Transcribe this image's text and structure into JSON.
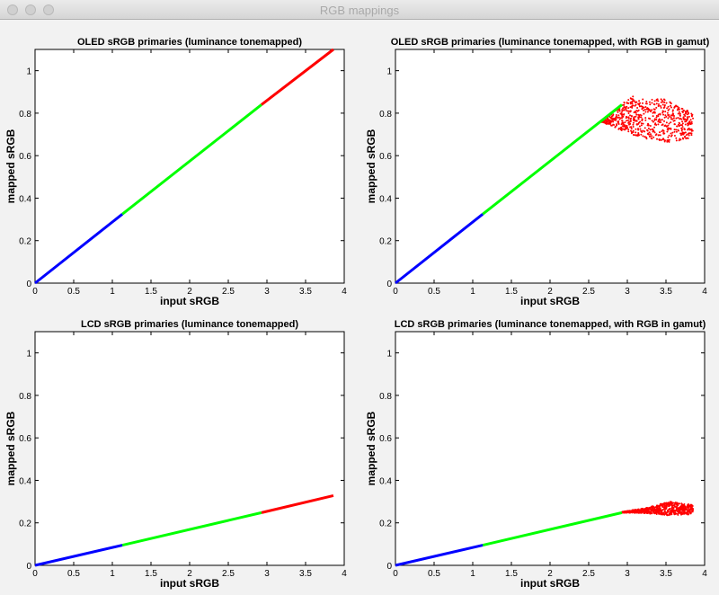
{
  "window": {
    "title": "RGB mappings"
  },
  "colors": {
    "blue": "#0000ff",
    "green": "#00ff00",
    "red": "#ff0000"
  },
  "chart_data": [
    {
      "type": "line",
      "title": "OLED sRGB primaries (luminance tonemapped)",
      "xlabel": "input sRGB",
      "ylabel": "mapped sRGB",
      "xlim": [
        0,
        4
      ],
      "ylim": [
        0,
        1.1
      ],
      "xticks": [
        "0",
        "0.5",
        "1",
        "1.5",
        "2",
        "2.5",
        "3",
        "3.5",
        "4"
      ],
      "yticks": [
        "0",
        "0.2",
        "0.4",
        "0.6",
        "0.8",
        "1"
      ],
      "series": [
        {
          "color": "blue",
          "x": [
            0,
            1.13
          ],
          "y": [
            0,
            0.325
          ]
        },
        {
          "color": "green",
          "x": [
            1.13,
            2.93
          ],
          "y": [
            0.325,
            0.84
          ]
        },
        {
          "color": "red",
          "x": [
            2.93,
            3.86
          ],
          "y": [
            0.84,
            1.1
          ]
        }
      ],
      "cloud": null
    },
    {
      "type": "line",
      "title": "OLED sRGB primaries (luminance tonemapped, with RGB in gamut)",
      "xlabel": "input sRGB",
      "ylabel": "mapped sRGB",
      "xlim": [
        0,
        4
      ],
      "ylim": [
        0,
        1.1
      ],
      "xticks": [
        "0",
        "0.5",
        "1",
        "1.5",
        "2",
        "2.5",
        "3",
        "3.5",
        "4"
      ],
      "yticks": [
        "0",
        "0.2",
        "0.4",
        "0.6",
        "0.8",
        "1"
      ],
      "series": [
        {
          "color": "blue",
          "x": [
            0,
            1.13
          ],
          "y": [
            0,
            0.325
          ]
        },
        {
          "color": "green",
          "x": [
            1.13,
            2.93
          ],
          "y": [
            0.325,
            0.84
          ]
        }
      ],
      "cloud": {
        "color": "red",
        "x": [
          2.65,
          3.85
        ],
        "y_top": [
          0.76,
          0.88,
          0.87,
          0.8
        ],
        "y_bottom": [
          0.76,
          0.7,
          0.66,
          0.68
        ]
      }
    },
    {
      "type": "line",
      "title": "LCD sRGB primaries (luminance tonemapped)",
      "xlabel": "input sRGB",
      "ylabel": "mapped sRGB",
      "xlim": [
        0,
        4
      ],
      "ylim": [
        0,
        1.1
      ],
      "xticks": [
        "0",
        "0.5",
        "1",
        "1.5",
        "2",
        "2.5",
        "3",
        "3.5",
        "4"
      ],
      "yticks": [
        "0",
        "0.2",
        "0.4",
        "0.6",
        "0.8",
        "1"
      ],
      "series": [
        {
          "color": "blue",
          "x": [
            0,
            1.13
          ],
          "y": [
            0,
            0.095
          ]
        },
        {
          "color": "green",
          "x": [
            1.13,
            2.93
          ],
          "y": [
            0.095,
            0.248
          ]
        },
        {
          "color": "red",
          "x": [
            2.93,
            3.86
          ],
          "y": [
            0.248,
            0.328
          ]
        }
      ],
      "cloud": null
    },
    {
      "type": "line",
      "title": "LCD sRGB primaries (luminance tonemapped, with RGB in gamut)",
      "xlabel": "input sRGB",
      "ylabel": "mapped sRGB",
      "xlim": [
        0,
        4
      ],
      "ylim": [
        0,
        1.1
      ],
      "xticks": [
        "0",
        "0.5",
        "1",
        "1.5",
        "2",
        "2.5",
        "3",
        "3.5",
        "4"
      ],
      "yticks": [
        "0",
        "0.2",
        "0.4",
        "0.6",
        "0.8",
        "1"
      ],
      "series": [
        {
          "color": "blue",
          "x": [
            0,
            1.13
          ],
          "y": [
            0,
            0.095
          ]
        },
        {
          "color": "green",
          "x": [
            1.13,
            2.93
          ],
          "y": [
            0.095,
            0.248
          ]
        }
      ],
      "cloud": {
        "color": "red",
        "x": [
          2.93,
          3.85
        ],
        "y_top": [
          0.252,
          0.27,
          0.3,
          0.285
        ],
        "y_bottom": [
          0.248,
          0.245,
          0.235,
          0.24
        ]
      }
    }
  ]
}
